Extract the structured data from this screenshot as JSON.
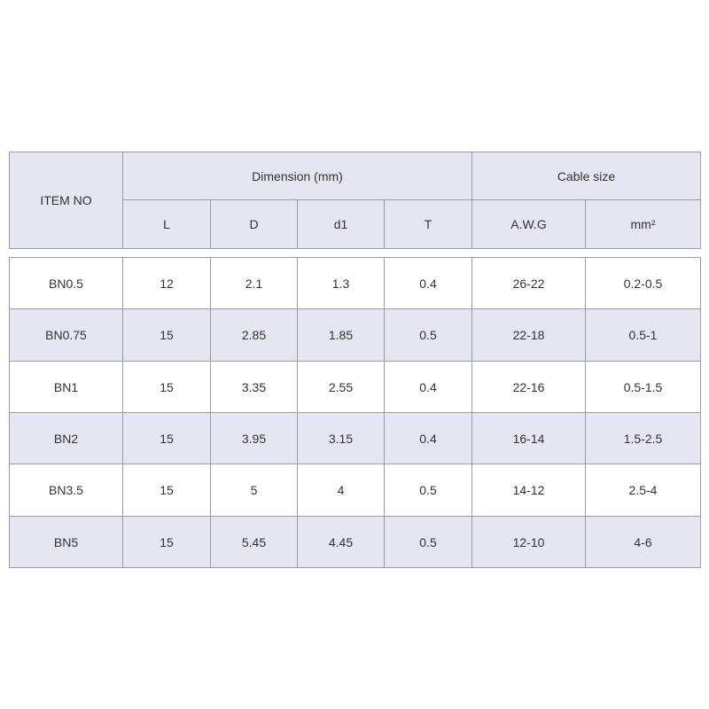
{
  "table": {
    "header": {
      "item_no": "ITEM NO",
      "groups": [
        "Dimension (mm)",
        "Cable size"
      ],
      "columns": [
        "L",
        "D",
        "d1",
        "T",
        "A.W.G",
        "mm²"
      ]
    },
    "rows": [
      [
        "BN0.5",
        "12",
        "2.1",
        "1.3",
        "0.4",
        "26-22",
        "0.2-0.5"
      ],
      [
        "BN0.75",
        "15",
        "2.85",
        "1.85",
        "0.5",
        "22-18",
        "0.5-1"
      ],
      [
        "BN1",
        "15",
        "3.35",
        "2.55",
        "0.4",
        "22-16",
        "0.5-1.5"
      ],
      [
        "BN2",
        "15",
        "3.95",
        "3.15",
        "0.4",
        "16-14",
        "1.5-2.5"
      ],
      [
        "BN3.5",
        "15",
        "5",
        "4",
        "0.5",
        "14-12",
        "2.5-4"
      ],
      [
        "BN5",
        "15",
        "5.45",
        "4.45",
        "0.5",
        "12-10",
        "4-6"
      ]
    ]
  }
}
